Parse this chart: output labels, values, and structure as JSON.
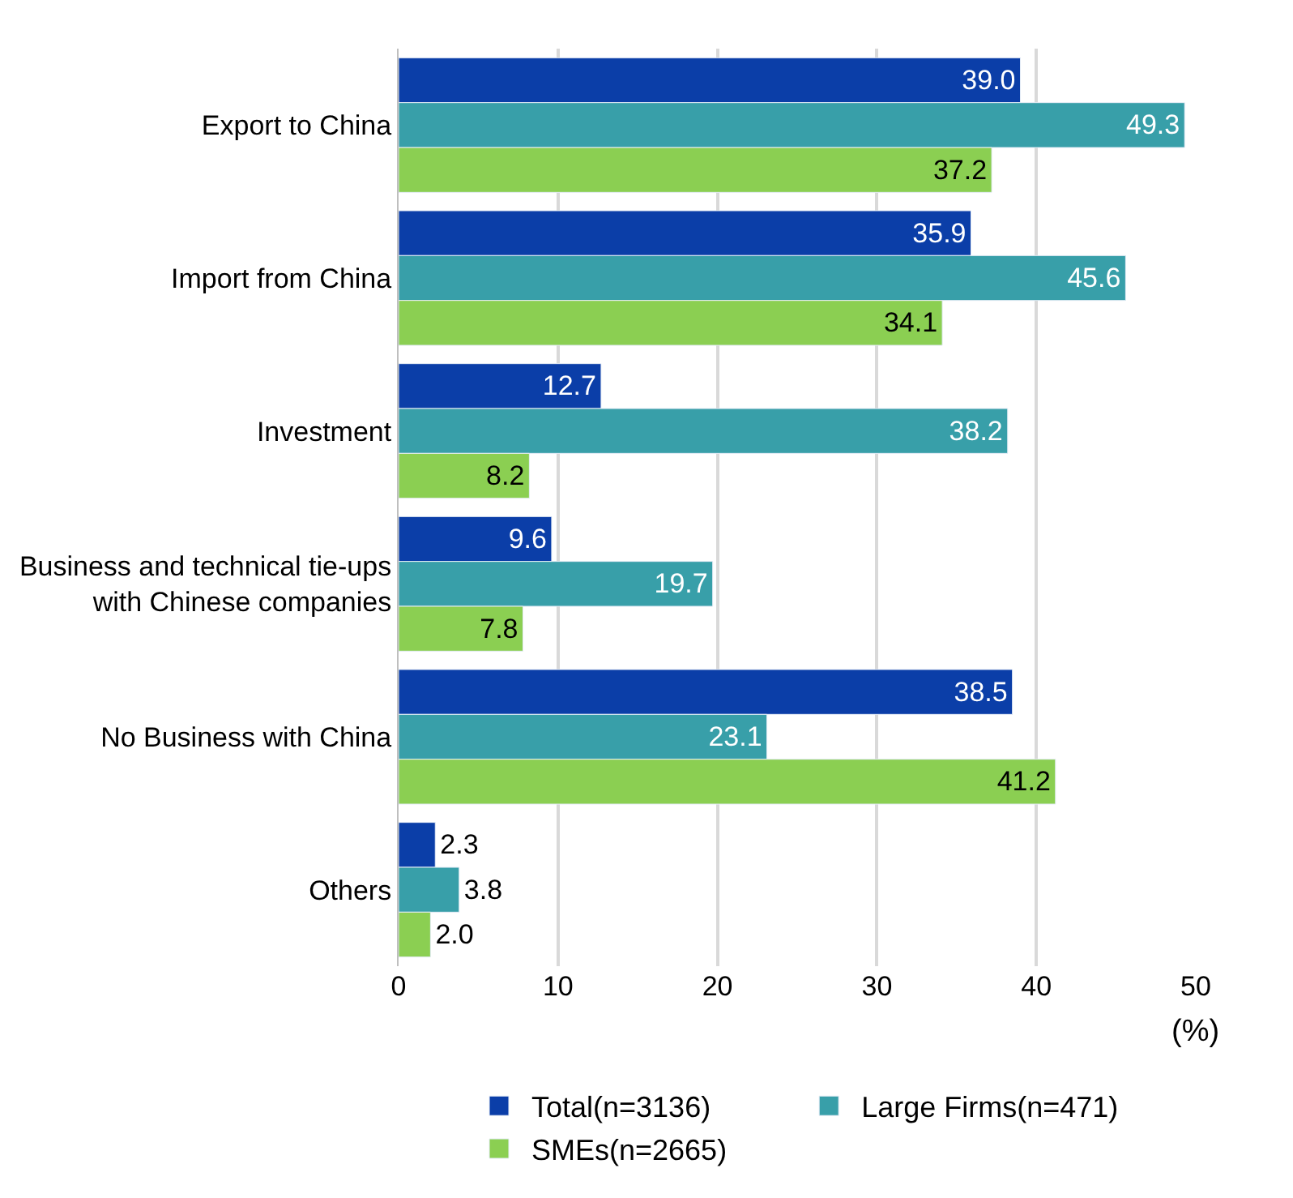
{
  "chart_data": {
    "type": "bar",
    "orientation": "horizontal",
    "xlabel": "(%)",
    "categories": [
      "Export to China",
      "Import from China",
      "Investment",
      "Business and technical tie-ups\nwith Chinese companies",
      "No Business with China",
      "Others"
    ],
    "series": [
      {
        "name": "Total(n=3136)",
        "color": "#0b3ea8",
        "values": [
          39.0,
          35.9,
          12.7,
          9.6,
          38.5,
          2.3
        ],
        "value_labels": [
          "39.0",
          "35.9",
          "12.7",
          "9.6",
          "38.5",
          "2.3"
        ]
      },
      {
        "name": "Large Firms(n=471)",
        "color": "#389fa9",
        "values": [
          49.3,
          45.6,
          38.2,
          19.7,
          23.1,
          3.8
        ],
        "value_labels": [
          "49.3",
          "45.6",
          "38.2",
          "19.7",
          "23.1",
          "3.8"
        ]
      },
      {
        "name": "SMEs(n=2665)",
        "color": "#8bcf52",
        "values": [
          37.2,
          34.1,
          8.2,
          7.8,
          41.2,
          2.0
        ],
        "value_labels": [
          "37.2",
          "34.1",
          "8.2",
          "7.8",
          "41.2",
          "2.0"
        ]
      }
    ],
    "xlim": [
      0,
      50
    ],
    "xticks": [
      0,
      10,
      20,
      30,
      40,
      50
    ],
    "grid": "x",
    "legend": "bottom"
  }
}
